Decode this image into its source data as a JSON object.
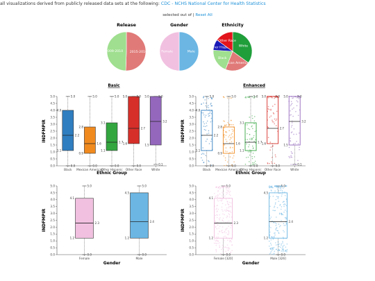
{
  "header": {
    "text": "all visualizations derived from publicly released data sets at the following:",
    "link": "CDC - NCHS National Center for Health Statistics"
  },
  "selection": {
    "text": "selected out of |",
    "reset": "Reset All"
  },
  "pies": [
    {
      "title": "Release",
      "slices": [
        {
          "label": "2015-2016",
          "value": 50.5,
          "color": "#e07a78"
        },
        {
          "label": "2009-2010",
          "value": 49.5,
          "color": "#9fdf8f"
        }
      ]
    },
    {
      "title": "Gender",
      "slices": [
        {
          "label": "Male",
          "value": 50,
          "color": "#6bb6e3"
        },
        {
          "label": "Female",
          "value": 50,
          "color": "#f1c0e0"
        }
      ]
    },
    {
      "title": "Ethnicity",
      "slices": [
        {
          "label": "White",
          "value": 35,
          "color": "#1f9e3a"
        },
        {
          "label": "Mexican American",
          "value": 21,
          "color": "#e07a78"
        },
        {
          "label": "Black",
          "value": 20,
          "color": "#9fdf8f"
        },
        {
          "label": "Other Hispanic",
          "value": 9,
          "color": "#1a1ab8"
        },
        {
          "label": "Other Race",
          "value": 15,
          "color": "#e2141c"
        }
      ]
    }
  ],
  "panels": {
    "basic_title": "Basic",
    "enhanced_title": "Enhanced"
  },
  "chart_data": [
    {
      "type": "box",
      "title": "Basic",
      "xlabel": "Ethnic Group",
      "ylabel": "INDFMPIR",
      "ylim": [
        0,
        5
      ],
      "yticks": [
        "0.0",
        "0.5",
        "1.0",
        "1.5",
        "2.0",
        "2.5",
        "3.0",
        "3.5",
        "4.0",
        "4.5",
        "5.0"
      ],
      "categories": [
        "Black",
        "Mexican American",
        "Other Hispanic",
        "Other Race",
        "White"
      ],
      "colors": [
        "#2f7ec0",
        "#f08a1f",
        "#33a640",
        "#d62f2a",
        "#9467bd"
      ],
      "boxes": [
        {
          "min": 0.0,
          "q1": 1.1,
          "median": 2.2,
          "q3": 4.0,
          "max": 5.0,
          "label_min": "0.0",
          "label_q1": "1.1",
          "label_median": "2.2",
          "label_q3": "4.0",
          "label_max": "5.0"
        },
        {
          "min": 0.0,
          "q1": 0.9,
          "median": 1.6,
          "q3": 2.8,
          "max": 5.0,
          "label_min": "0.0",
          "label_q1": "0.9",
          "label_median": "1.6",
          "label_q3": "2.8",
          "label_max": "5.0"
        },
        {
          "min": 0.0,
          "q1": 1.1,
          "median": 1.7,
          "q3": 3.1,
          "max": 5.0,
          "label_min": "0.0",
          "label_q1": "1.1",
          "label_median": "1.7",
          "label_q3": "3.1",
          "label_max": "5.0"
        },
        {
          "min": 0.0,
          "q1": 1.6,
          "median": 2.7,
          "q3": 5.0,
          "max": 5.0,
          "label_min": "0.0",
          "label_q1": "1.6",
          "label_median": "2.7",
          "label_q3": "5.0",
          "label_max": "5.0"
        },
        {
          "min": 0.1,
          "q1": 1.5,
          "median": 3.2,
          "q3": 5.0,
          "max": 5.0,
          "label_min": "0.1",
          "label_q1": "1.5",
          "label_median": "3.2",
          "label_q3": "5.0",
          "label_max": "5.0"
        }
      ]
    },
    {
      "type": "box",
      "title": "Enhanced",
      "xlabel": "Ethnic Group",
      "ylabel": "INDFMPIR",
      "ylim": [
        0,
        5
      ],
      "points": true,
      "yticks": [
        "0.0",
        "0.5",
        "1.0",
        "1.5",
        "2.0",
        "2.5",
        "3.0",
        "3.5",
        "4.0",
        "4.5",
        "5.0"
      ],
      "categories": [
        "Black",
        "Mexican American",
        "Other Hispanic",
        "Other Race",
        "White"
      ],
      "colors": [
        "#2f7ec0",
        "#f08a1f",
        "#33a640",
        "#d62f2a",
        "#9467bd"
      ],
      "boxes": [
        {
          "min": 0.0,
          "q1": 1.1,
          "median": 2.2,
          "q3": 4.0,
          "max": 5.0,
          "label_min": "0.0",
          "label_q1": "1.1",
          "label_median": "2.2",
          "label_q3": "4.0",
          "label_max": "5.0"
        },
        {
          "min": 0.0,
          "q1": 0.9,
          "median": 1.6,
          "q3": 2.8,
          "max": 5.0,
          "label_min": "0.0",
          "label_q1": "0.9",
          "label_median": "1.6",
          "label_q3": "2.8",
          "label_max": "5.0"
        },
        {
          "min": 0.0,
          "q1": 1.1,
          "median": 1.7,
          "q3": 3.1,
          "max": 5.0,
          "label_min": "0.0",
          "label_q1": "1.1",
          "label_median": "1.7",
          "label_q3": "3.1",
          "label_max": "5.0"
        },
        {
          "min": 0.0,
          "q1": 1.6,
          "median": 2.7,
          "q3": 5.0,
          "max": 5.0,
          "label_min": "0.0",
          "label_q1": "1.6",
          "label_median": "2.7",
          "label_q3": "5.0",
          "label_max": "5.0"
        },
        {
          "min": 0.1,
          "q1": 1.5,
          "median": 3.2,
          "q3": 5.0,
          "max": 5.0,
          "label_min": "0.1",
          "label_q1": "1.5",
          "label_median": "3.2",
          "label_q3": "5.0",
          "label_max": "5.0"
        }
      ]
    },
    {
      "type": "box",
      "title": "",
      "xlabel": "Gender",
      "ylabel": "INDFMPIR",
      "ylim": [
        0,
        5
      ],
      "yticks": [
        "0.0",
        "0.5",
        "1.0",
        "1.5",
        "2.0",
        "2.5",
        "3.0",
        "3.5",
        "4.0",
        "4.5",
        "5.0"
      ],
      "categories": [
        "Female",
        "Male"
      ],
      "colors": [
        "#f1c0e0",
        "#6bb6e3"
      ],
      "boxes": [
        {
          "min": 0.0,
          "q1": 1.2,
          "median": 2.3,
          "q3": 4.1,
          "max": 5.0,
          "label_min": "0.0",
          "label_q1": "1.2",
          "label_median": "2.3",
          "label_q3": "4.1",
          "label_max": "5.0"
        },
        {
          "min": 0.0,
          "q1": 1.2,
          "median": 2.4,
          "q3": 4.5,
          "max": 5.0,
          "label_min": "0.0",
          "label_q1": "1.2",
          "label_median": "2.4",
          "label_q3": "4.5",
          "label_max": "5.0"
        }
      ]
    },
    {
      "type": "box",
      "title": "",
      "xlabel": "Gender",
      "ylabel": "INDFMPIR",
      "ylim": [
        0,
        5
      ],
      "points": true,
      "yticks": [
        "0.0",
        "0.5",
        "1.0",
        "1.5",
        "2.0",
        "2.5",
        "3.0",
        "3.5",
        "4.0",
        "4.5",
        "5.0"
      ],
      "categories": [
        "Female [320]",
        "Male [326]"
      ],
      "colors": [
        "#f1c0e0",
        "#6bb6e3"
      ],
      "boxes": [
        {
          "min": 0.0,
          "q1": 1.2,
          "median": 2.3,
          "q3": 4.1,
          "max": 5.0,
          "label_min": "0.0",
          "label_q1": "1.2",
          "label_median": "2.3",
          "label_q3": "4.1",
          "label_max": "5.0"
        },
        {
          "min": 0.0,
          "q1": 1.2,
          "median": 2.4,
          "q3": 4.5,
          "max": 5.0,
          "label_min": "0.0",
          "label_q1": "1.2",
          "label_median": "2.4",
          "label_q3": "4.5",
          "label_max": "5.0"
        }
      ]
    }
  ]
}
